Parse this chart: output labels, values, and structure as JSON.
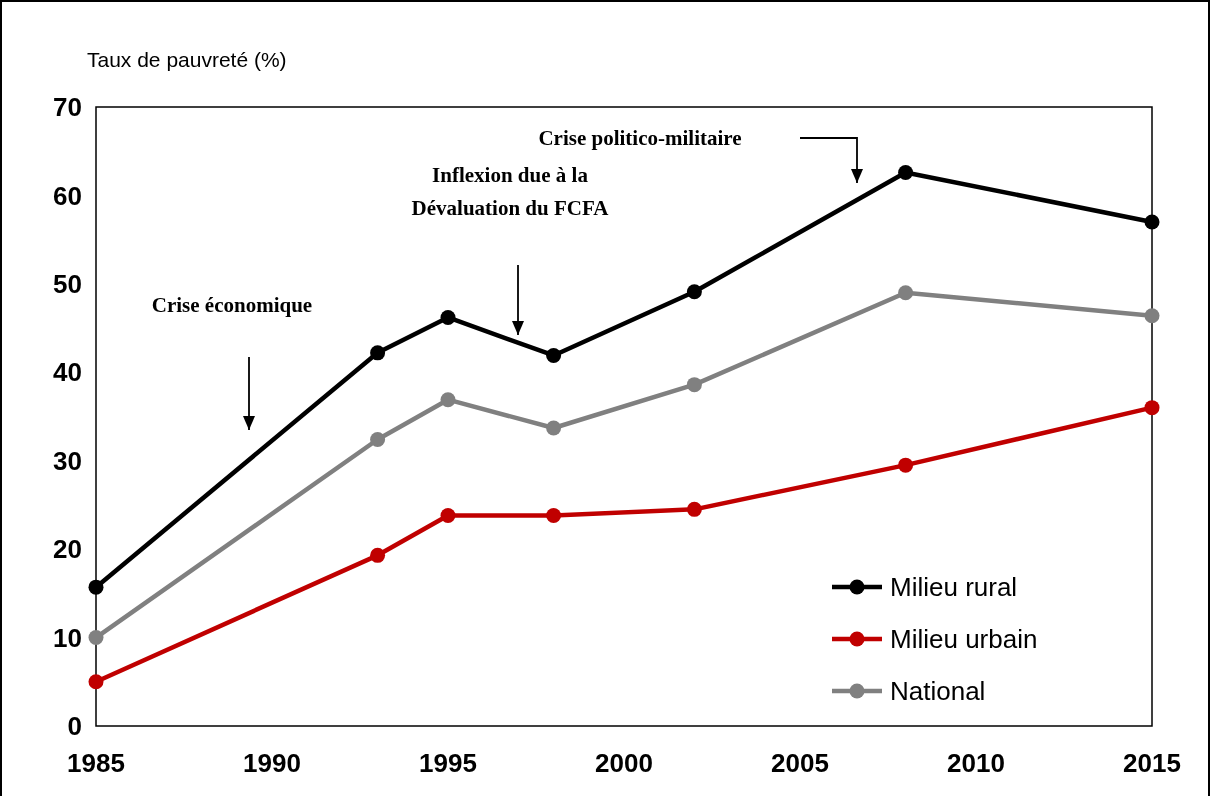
{
  "chart_data": {
    "type": "line",
    "ylabel": "Taux de pauvreté (%)",
    "x": [
      1985,
      1993,
      1995,
      1998,
      2002,
      2008,
      2015
    ],
    "series": [
      {
        "name": "Milieu rural",
        "color": "#000000",
        "values": [
          15.7,
          42.2,
          46.2,
          41.9,
          49.1,
          62.6,
          57.0
        ]
      },
      {
        "name": "Milieu urbain",
        "color": "#c00000",
        "values": [
          5.0,
          19.3,
          23.8,
          23.8,
          24.5,
          29.5,
          36.0
        ]
      },
      {
        "name": "National",
        "color": "#808080",
        "values": [
          10.0,
          32.4,
          36.9,
          33.7,
          38.6,
          49.0,
          46.4
        ]
      }
    ],
    "xlim": [
      1985,
      2015
    ],
    "xticks": [
      1985,
      1990,
      1995,
      2000,
      2005,
      2010,
      2015
    ],
    "ylim": [
      0,
      70
    ],
    "yticks": [
      0,
      10,
      20,
      30,
      40,
      50,
      60,
      70
    ],
    "marker": "circle",
    "line_style": "solid",
    "grid": false,
    "legend": "bottom right",
    "annotations": [
      "Crise économique",
      "Inflexion due à la\nDévaluation du FCFA",
      "Crise politico-militaire"
    ]
  }
}
